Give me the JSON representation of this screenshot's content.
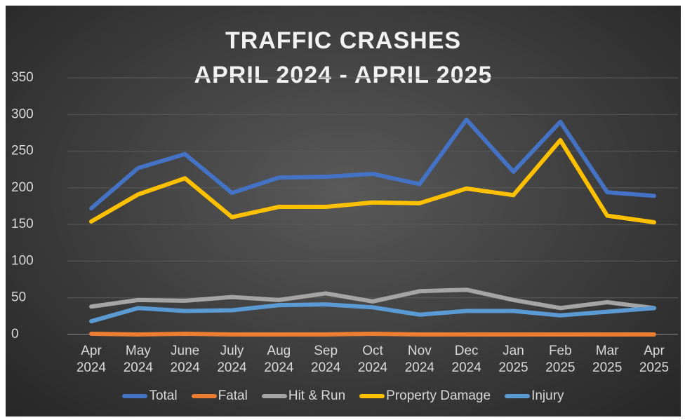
{
  "chart_data": {
    "type": "line",
    "title": [
      "TRAFFIC CRASHES",
      "APRIL 2024 - APRIL 2025"
    ],
    "categories": [
      "Apr 2024",
      "May 2024",
      "June 2024",
      "July 2024",
      "Aug 2024",
      "Sep 2024",
      "Oct 2024",
      "Nov 2024",
      "Dec 2024",
      "Jan 2025",
      "Feb 2025",
      "Mar 2025",
      "Apr 2025"
    ],
    "series": [
      {
        "name": "Total",
        "color": "#4472c4",
        "values": [
          172,
          227,
          246,
          193,
          214,
          215,
          219,
          205,
          293,
          222,
          290,
          194,
          189
        ]
      },
      {
        "name": "Fatal",
        "color": "#ed7d31",
        "values": [
          1,
          0,
          1,
          0,
          0,
          0,
          1,
          0,
          0,
          0,
          0,
          0,
          0
        ]
      },
      {
        "name": "Hit & Run",
        "color": "#a5a5a5",
        "values": [
          38,
          47,
          46,
          51,
          47,
          56,
          45,
          59,
          61,
          47,
          36,
          44,
          36
        ]
      },
      {
        "name": "Property Damage",
        "color": "#ffc000",
        "values": [
          154,
          191,
          213,
          160,
          174,
          174,
          180,
          179,
          199,
          190,
          265,
          162,
          153
        ]
      },
      {
        "name": "Injury",
        "color": "#5b9bd5",
        "values": [
          18,
          36,
          32,
          33,
          40,
          41,
          37,
          27,
          32,
          32,
          26,
          31,
          36
        ]
      }
    ],
    "ylim": [
      0,
      350
    ],
    "yticks": [
      0,
      50,
      100,
      150,
      200,
      250,
      300,
      350
    ],
    "grid": true,
    "legend": "bottom"
  }
}
